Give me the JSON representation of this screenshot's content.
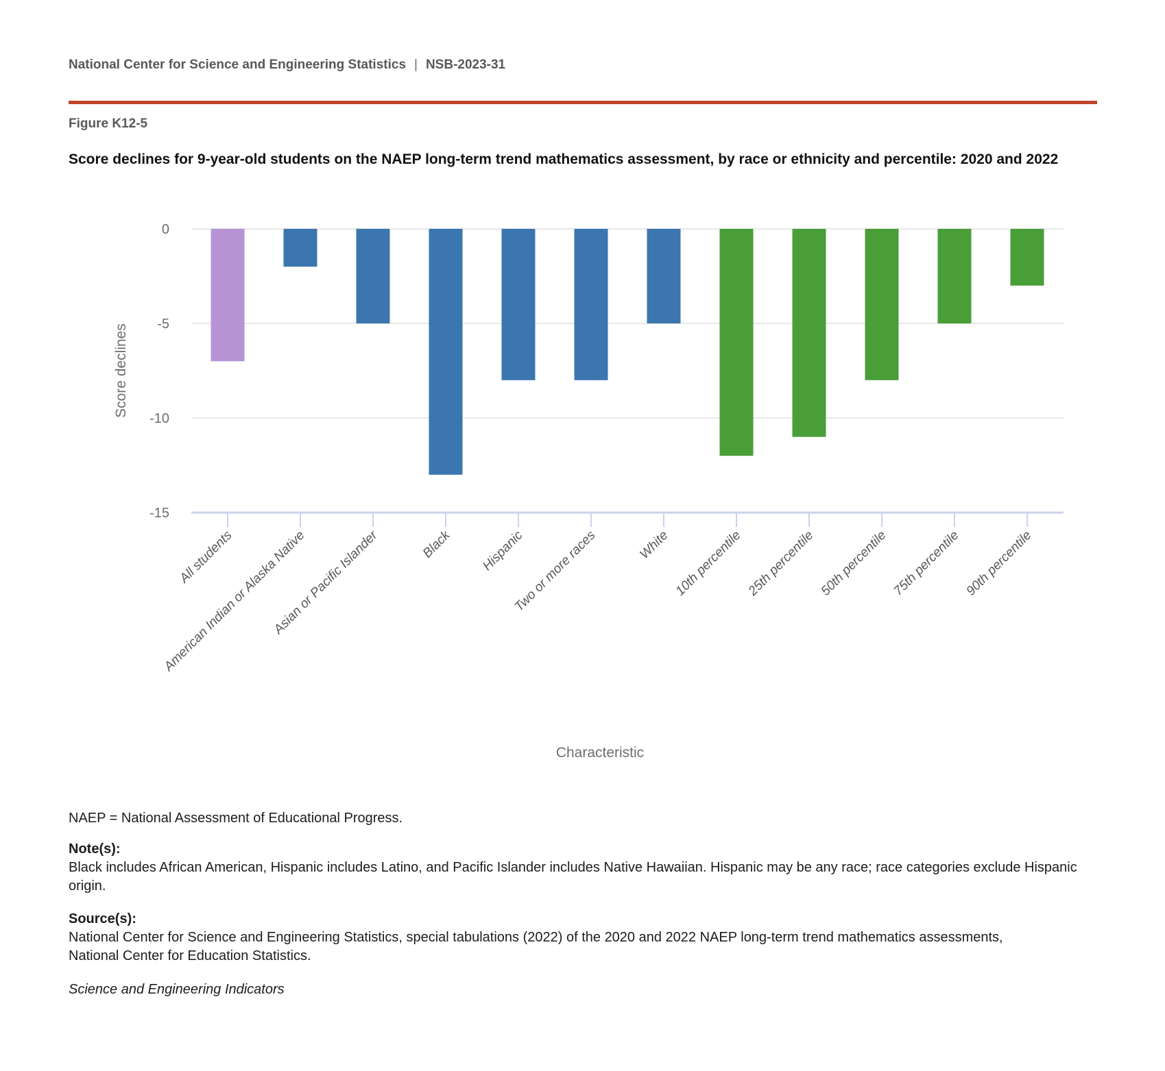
{
  "header": {
    "org": "National Center for Science and Engineering Statistics",
    "divider": "|",
    "report_id": "NSB-2023-31"
  },
  "figure": {
    "label": "Figure K12-5",
    "title": "Score declines for 9-year-old students on the NAEP long-term trend mathematics assessment, by race or ethnicity and percentile: 2020 and 2022"
  },
  "chart_data": {
    "type": "bar",
    "title": "",
    "xlabel": "Characteristic",
    "ylabel": "Score declines",
    "categories": [
      "All students",
      "American Indian or Alaska Native",
      "Asian or Pacific Islander",
      "Black",
      "Hispanic",
      "Two or more races",
      "White",
      "10th percentile",
      "25th percentile",
      "50th percentile",
      "75th percentile",
      "90th percentile"
    ],
    "values": [
      -7,
      -2,
      -5,
      -13,
      -8,
      -8,
      -5,
      -12,
      -11,
      -8,
      -5,
      -3
    ],
    "bar_colors": [
      "#b794d5",
      "#3b76af",
      "#3b76af",
      "#3b76af",
      "#3b76af",
      "#3b76af",
      "#3b76af",
      "#4a9e38",
      "#4a9e38",
      "#4a9e38",
      "#4a9e38",
      "#4a9e38"
    ],
    "color_groups": {
      "all_students": "#b794d5",
      "race_or_ethnicity": "#3b76af",
      "percentile": "#4a9e38"
    },
    "yticks": [
      0,
      -5,
      -10,
      -15
    ],
    "ylim": [
      -15,
      0
    ],
    "grid": true,
    "legend": "none"
  },
  "notes": {
    "abbreviation": "NAEP = National Assessment of Educational Progress.",
    "notes_label": "Note(s):",
    "notes_text": "Black includes African American, Hispanic includes Latino, and Pacific Islander includes Native Hawaiian. Hispanic may be any race; race categories exclude Hispanic origin.",
    "sources_label": "Source(s):",
    "sources_text": "National Center for Science and Engineering Statistics, special tabulations (2022) of the 2020 and 2022 NAEP long-term trend mathematics assessments, National Center for Education Statistics.",
    "attribution": "Science and Engineering Indicators"
  },
  "colors": {
    "accent_rule": "#c1462d",
    "grid_line": "#e8e8e8",
    "axis_line": "#c9d2e8"
  }
}
